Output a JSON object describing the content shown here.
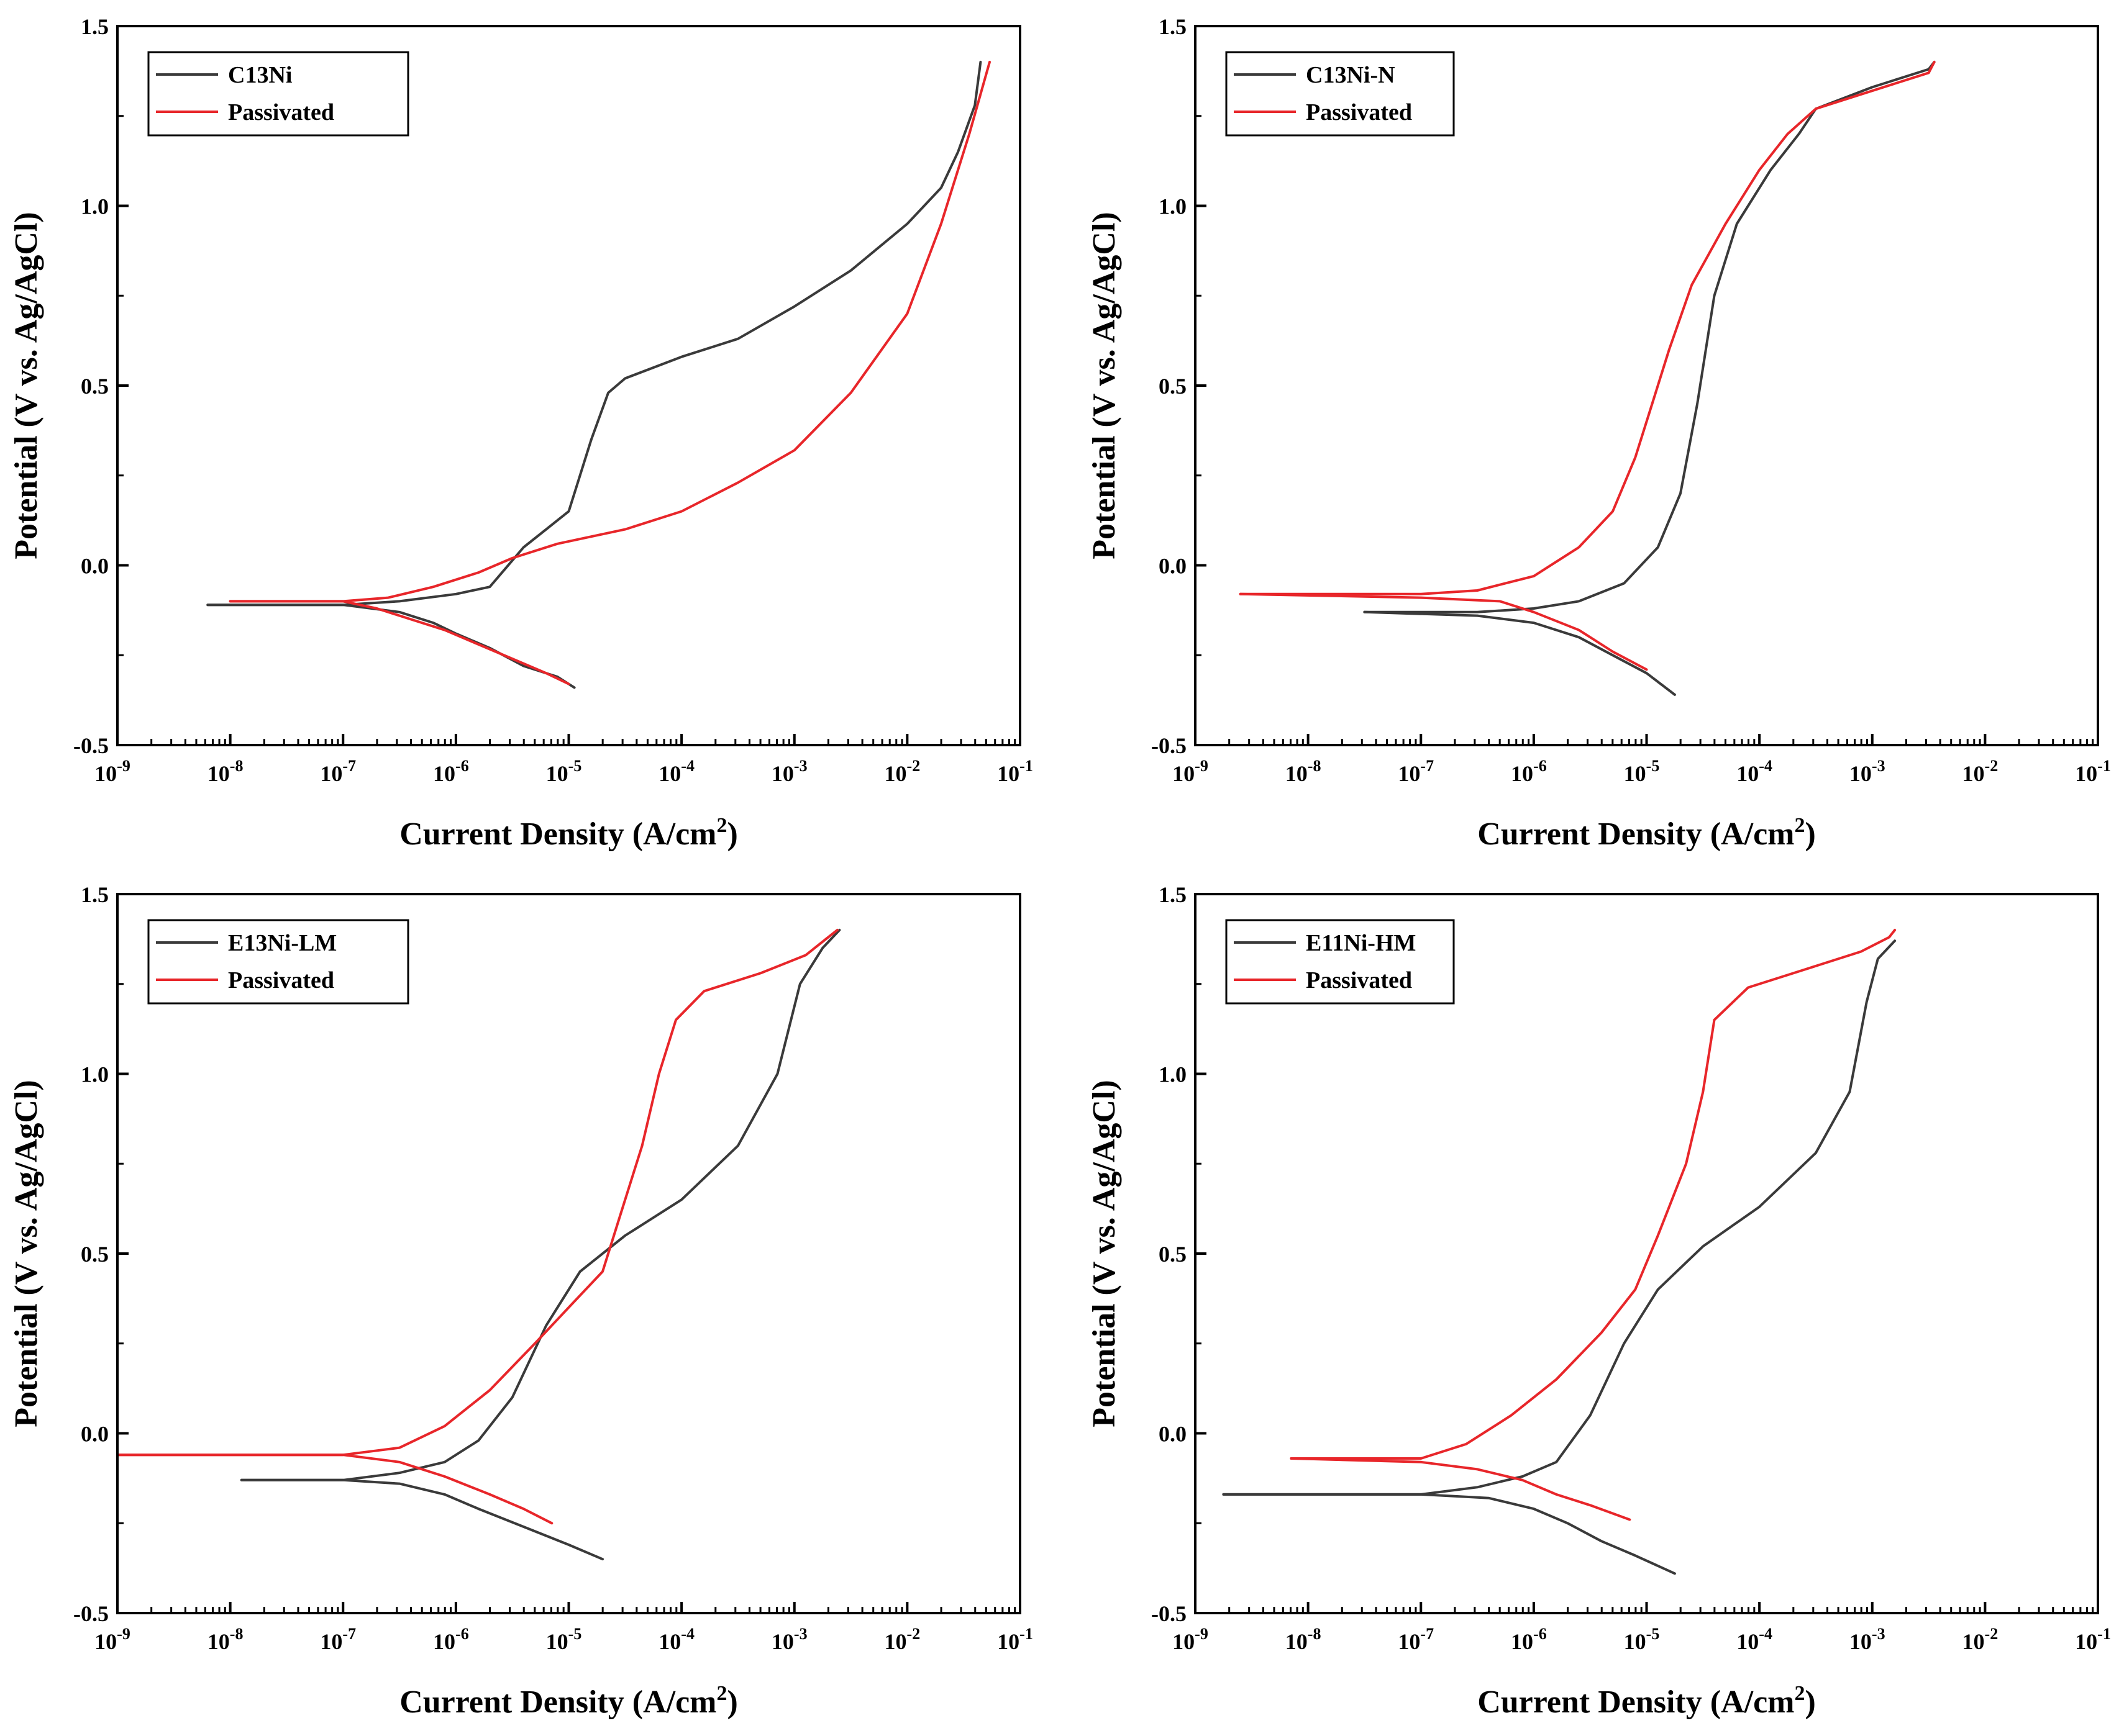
{
  "colors": {
    "black_series": "#3a3a3a",
    "red_series": "#e8262a",
    "axis": "#000000"
  },
  "chart_data": [
    {
      "type": "line",
      "xscale": "log",
      "xlabel": "Current Density (A/cm",
      "xlabel_sup": "2",
      "xlabel_close": ")",
      "ylabel": "Potential (V vs. Ag/AgCl)",
      "xlim_exp": [
        -9,
        -1
      ],
      "ylim": [
        -0.5,
        1.5
      ],
      "y_ticks": [
        "-0.5",
        "0.0",
        "0.5",
        "1.0",
        "1.5"
      ],
      "x_tick_base": "10",
      "x_tick_exps": [
        "-9",
        "-8",
        "-7",
        "-6",
        "-5",
        "-4",
        "-3",
        "-2",
        "-1"
      ],
      "legend_position": "top-left",
      "series": [
        {
          "name": "C13Ni",
          "color": "#3a3a3a",
          "points": [
            [
              -8.2,
              -0.11
            ],
            [
              -7.0,
              -0.11
            ],
            [
              -6.5,
              -0.1
            ],
            [
              -6.0,
              -0.08
            ],
            [
              -5.7,
              -0.06
            ],
            [
              -5.4,
              0.05
            ],
            [
              -5.0,
              0.15
            ],
            [
              -4.8,
              0.35
            ],
            [
              -4.65,
              0.48
            ],
            [
              -4.5,
              0.52
            ],
            [
              -4.0,
              0.58
            ],
            [
              -3.5,
              0.63
            ],
            [
              -3.0,
              0.72
            ],
            [
              -2.5,
              0.82
            ],
            [
              -2.0,
              0.95
            ],
            [
              -1.7,
              1.05
            ],
            [
              -1.55,
              1.15
            ],
            [
              -1.4,
              1.28
            ],
            [
              -1.35,
              1.4
            ]
          ]
        },
        {
          "name": "C13Ni",
          "color": "#3a3a3a",
          "points": [
            [
              -8.2,
              -0.11
            ],
            [
              -7.0,
              -0.11
            ],
            [
              -6.5,
              -0.13
            ],
            [
              -6.2,
              -0.16
            ],
            [
              -6.0,
              -0.19
            ],
            [
              -5.7,
              -0.23
            ],
            [
              -5.4,
              -0.28
            ],
            [
              -5.1,
              -0.31
            ],
            [
              -4.95,
              -0.34
            ]
          ]
        },
        {
          "name": "Passivated",
          "color": "#e8262a",
          "points": [
            [
              -8.0,
              -0.1
            ],
            [
              -7.0,
              -0.1
            ],
            [
              -6.6,
              -0.09
            ],
            [
              -6.2,
              -0.06
            ],
            [
              -5.8,
              -0.02
            ],
            [
              -5.5,
              0.02
            ],
            [
              -5.1,
              0.06
            ],
            [
              -4.5,
              0.1
            ],
            [
              -4.0,
              0.15
            ],
            [
              -3.5,
              0.23
            ],
            [
              -3.0,
              0.32
            ],
            [
              -2.5,
              0.48
            ],
            [
              -2.0,
              0.7
            ],
            [
              -1.7,
              0.95
            ],
            [
              -1.45,
              1.2
            ],
            [
              -1.27,
              1.4
            ]
          ]
        },
        {
          "name": "Passivated",
          "color": "#e8262a",
          "points": [
            [
              -8.0,
              -0.1
            ],
            [
              -7.0,
              -0.1
            ],
            [
              -6.7,
              -0.12
            ],
            [
              -6.4,
              -0.15
            ],
            [
              -6.1,
              -0.18
            ],
            [
              -5.8,
              -0.22
            ],
            [
              -5.5,
              -0.26
            ],
            [
              -5.2,
              -0.3
            ],
            [
              -5.0,
              -0.33
            ]
          ]
        }
      ]
    },
    {
      "type": "line",
      "xscale": "log",
      "xlabel": "Current Density (A/cm",
      "xlabel_sup": "2",
      "xlabel_close": ")",
      "ylabel": "Potential (V vs. Ag/AgCl)",
      "xlim_exp": [
        -9,
        -1
      ],
      "ylim": [
        -0.5,
        1.5
      ],
      "y_ticks": [
        "-0.5",
        "0.0",
        "0.5",
        "1.0",
        "1.5"
      ],
      "x_tick_base": "10",
      "x_tick_exps": [
        "-9",
        "-8",
        "-7",
        "-6",
        "-5",
        "-4",
        "-3",
        "-2",
        "-1"
      ],
      "legend_position": "top-left",
      "series": [
        {
          "name": "C13Ni-N",
          "color": "#3a3a3a",
          "points": [
            [
              -7.5,
              -0.13
            ],
            [
              -6.5,
              -0.13
            ],
            [
              -6.0,
              -0.12
            ],
            [
              -5.6,
              -0.1
            ],
            [
              -5.2,
              -0.05
            ],
            [
              -4.9,
              0.05
            ],
            [
              -4.7,
              0.2
            ],
            [
              -4.55,
              0.45
            ],
            [
              -4.4,
              0.75
            ],
            [
              -4.2,
              0.95
            ],
            [
              -3.9,
              1.1
            ],
            [
              -3.65,
              1.2
            ],
            [
              -3.5,
              1.27
            ],
            [
              -3.0,
              1.33
            ],
            [
              -2.5,
              1.38
            ],
            [
              -2.45,
              1.4
            ]
          ]
        },
        {
          "name": "C13Ni-N",
          "color": "#3a3a3a",
          "points": [
            [
              -7.5,
              -0.13
            ],
            [
              -6.5,
              -0.14
            ],
            [
              -6.0,
              -0.16
            ],
            [
              -5.6,
              -0.2
            ],
            [
              -5.3,
              -0.25
            ],
            [
              -5.0,
              -0.3
            ],
            [
              -4.75,
              -0.36
            ]
          ]
        },
        {
          "name": "Passivated",
          "color": "#e8262a",
          "points": [
            [
              -8.6,
              -0.08
            ],
            [
              -7.0,
              -0.08
            ],
            [
              -6.5,
              -0.07
            ],
            [
              -6.0,
              -0.03
            ],
            [
              -5.6,
              0.05
            ],
            [
              -5.3,
              0.15
            ],
            [
              -5.1,
              0.3
            ],
            [
              -4.95,
              0.45
            ],
            [
              -4.8,
              0.6
            ],
            [
              -4.6,
              0.78
            ],
            [
              -4.3,
              0.95
            ],
            [
              -4.0,
              1.1
            ],
            [
              -3.75,
              1.2
            ],
            [
              -3.5,
              1.27
            ],
            [
              -3.0,
              1.32
            ],
            [
              -2.5,
              1.37
            ],
            [
              -2.45,
              1.4
            ]
          ]
        },
        {
          "name": "Passivated",
          "color": "#e8262a",
          "points": [
            [
              -8.6,
              -0.08
            ],
            [
              -7.0,
              -0.09
            ],
            [
              -6.3,
              -0.1
            ],
            [
              -6.0,
              -0.13
            ],
            [
              -5.6,
              -0.18
            ],
            [
              -5.3,
              -0.24
            ],
            [
              -5.0,
              -0.29
            ]
          ]
        }
      ]
    },
    {
      "type": "line",
      "xscale": "log",
      "xlabel": "Current Density (A/cm",
      "xlabel_sup": "2",
      "xlabel_close": ")",
      "ylabel": "Potential (V vs. Ag/AgCl)",
      "xlim_exp": [
        -9,
        -1
      ],
      "ylim": [
        -0.5,
        1.5
      ],
      "y_ticks": [
        "-0.5",
        "0.0",
        "0.5",
        "1.0",
        "1.5"
      ],
      "x_tick_base": "10",
      "x_tick_exps": [
        "-9",
        "-8",
        "-7",
        "-6",
        "-5",
        "-4",
        "-3",
        "-2",
        "-1"
      ],
      "legend_position": "top-left",
      "series": [
        {
          "name": "E13Ni-LM",
          "color": "#3a3a3a",
          "points": [
            [
              -7.9,
              -0.13
            ],
            [
              -7.0,
              -0.13
            ],
            [
              -6.5,
              -0.11
            ],
            [
              -6.1,
              -0.08
            ],
            [
              -5.8,
              -0.02
            ],
            [
              -5.5,
              0.1
            ],
            [
              -5.2,
              0.3
            ],
            [
              -4.9,
              0.45
            ],
            [
              -4.5,
              0.55
            ],
            [
              -4.0,
              0.65
            ],
            [
              -3.5,
              0.8
            ],
            [
              -3.15,
              1.0
            ],
            [
              -2.95,
              1.25
            ],
            [
              -2.75,
              1.35
            ],
            [
              -2.6,
              1.4
            ]
          ]
        },
        {
          "name": "E13Ni-LM",
          "color": "#3a3a3a",
          "points": [
            [
              -7.9,
              -0.13
            ],
            [
              -7.0,
              -0.13
            ],
            [
              -6.5,
              -0.14
            ],
            [
              -6.1,
              -0.17
            ],
            [
              -5.8,
              -0.21
            ],
            [
              -5.4,
              -0.26
            ],
            [
              -5.0,
              -0.31
            ],
            [
              -4.7,
              -0.35
            ]
          ]
        },
        {
          "name": "Passivated",
          "color": "#e8262a",
          "points": [
            [
              -9.0,
              -0.06
            ],
            [
              -7.0,
              -0.06
            ],
            [
              -6.5,
              -0.04
            ],
            [
              -6.1,
              0.02
            ],
            [
              -5.7,
              0.12
            ],
            [
              -5.3,
              0.25
            ],
            [
              -5.0,
              0.35
            ],
            [
              -4.7,
              0.45
            ],
            [
              -4.55,
              0.6
            ],
            [
              -4.35,
              0.8
            ],
            [
              -4.2,
              1.0
            ],
            [
              -4.05,
              1.15
            ],
            [
              -3.8,
              1.23
            ],
            [
              -3.3,
              1.28
            ],
            [
              -2.9,
              1.33
            ],
            [
              -2.7,
              1.38
            ],
            [
              -2.62,
              1.4
            ]
          ]
        },
        {
          "name": "Passivated",
          "color": "#e8262a",
          "points": [
            [
              -9.0,
              -0.06
            ],
            [
              -7.0,
              -0.06
            ],
            [
              -6.5,
              -0.08
            ],
            [
              -6.1,
              -0.12
            ],
            [
              -5.7,
              -0.17
            ],
            [
              -5.4,
              -0.21
            ],
            [
              -5.15,
              -0.25
            ]
          ]
        }
      ]
    },
    {
      "type": "line",
      "xscale": "log",
      "xlabel": "Current Density (A/cm",
      "xlabel_sup": "2",
      "xlabel_close": ")",
      "ylabel": "Potential (V vs. Ag/AgCl)",
      "xlim_exp": [
        -9,
        -1
      ],
      "ylim": [
        -0.5,
        1.5
      ],
      "y_ticks": [
        "-0.5",
        "0.0",
        "0.5",
        "1.0",
        "1.5"
      ],
      "x_tick_base": "10",
      "x_tick_exps": [
        "-9",
        "-8",
        "-7",
        "-6",
        "-5",
        "-4",
        "-3",
        "-2",
        "-1"
      ],
      "legend_position": "top-left",
      "series": [
        {
          "name": "E11Ni-HM",
          "color": "#3a3a3a",
          "points": [
            [
              -8.75,
              -0.17
            ],
            [
              -7.0,
              -0.17
            ],
            [
              -6.5,
              -0.15
            ],
            [
              -6.1,
              -0.12
            ],
            [
              -5.8,
              -0.08
            ],
            [
              -5.5,
              0.05
            ],
            [
              -5.2,
              0.25
            ],
            [
              -4.9,
              0.4
            ],
            [
              -4.5,
              0.52
            ],
            [
              -4.0,
              0.63
            ],
            [
              -3.5,
              0.78
            ],
            [
              -3.2,
              0.95
            ],
            [
              -3.05,
              1.2
            ],
            [
              -2.95,
              1.32
            ],
            [
              -2.8,
              1.37
            ]
          ]
        },
        {
          "name": "E11Ni-HM",
          "color": "#3a3a3a",
          "points": [
            [
              -8.75,
              -0.17
            ],
            [
              -7.0,
              -0.17
            ],
            [
              -6.4,
              -0.18
            ],
            [
              -6.0,
              -0.21
            ],
            [
              -5.7,
              -0.25
            ],
            [
              -5.4,
              -0.3
            ],
            [
              -5.1,
              -0.34
            ],
            [
              -4.75,
              -0.39
            ]
          ]
        },
        {
          "name": "Passivated",
          "color": "#e8262a",
          "points": [
            [
              -8.15,
              -0.07
            ],
            [
              -7.0,
              -0.07
            ],
            [
              -6.6,
              -0.03
            ],
            [
              -6.2,
              0.05
            ],
            [
              -5.8,
              0.15
            ],
            [
              -5.4,
              0.28
            ],
            [
              -5.1,
              0.4
            ],
            [
              -4.9,
              0.55
            ],
            [
              -4.65,
              0.75
            ],
            [
              -4.5,
              0.95
            ],
            [
              -4.4,
              1.15
            ],
            [
              -4.1,
              1.24
            ],
            [
              -3.6,
              1.29
            ],
            [
              -3.1,
              1.34
            ],
            [
              -2.85,
              1.38
            ],
            [
              -2.8,
              1.4
            ]
          ]
        },
        {
          "name": "Passivated",
          "color": "#e8262a",
          "points": [
            [
              -8.15,
              -0.07
            ],
            [
              -7.0,
              -0.08
            ],
            [
              -6.5,
              -0.1
            ],
            [
              -6.1,
              -0.13
            ],
            [
              -5.8,
              -0.17
            ],
            [
              -5.5,
              -0.2
            ],
            [
              -5.15,
              -0.24
            ]
          ]
        }
      ]
    }
  ]
}
